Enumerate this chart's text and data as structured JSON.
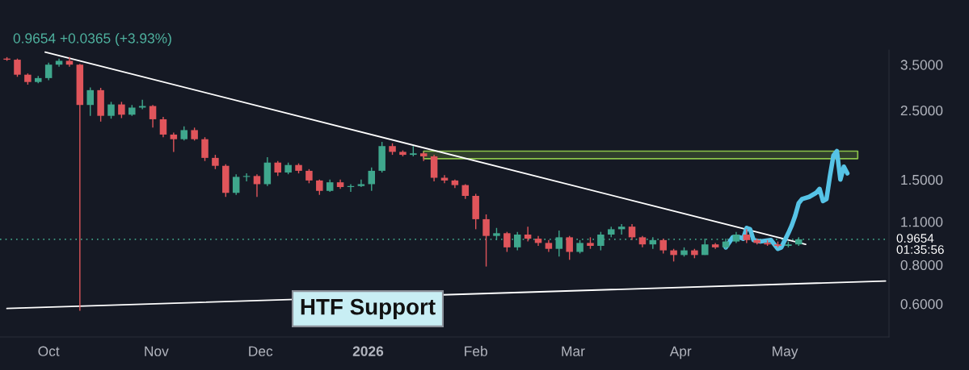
{
  "chart_data": {
    "type": "candlestick",
    "x": [
      "2025-09-19",
      "2025-09-22",
      "2025-09-25",
      "2025-09-28",
      "2025-10-01",
      "2025-10-04",
      "2025-10-07",
      "2025-10-10",
      "2025-10-13",
      "2025-10-16",
      "2025-10-19",
      "2025-10-22",
      "2025-10-25",
      "2025-10-28",
      "2025-10-31",
      "2025-11-03",
      "2025-11-06",
      "2025-11-09",
      "2025-11-12",
      "2025-11-15",
      "2025-11-18",
      "2025-11-21",
      "2025-11-24",
      "2025-11-27",
      "2025-11-30",
      "2025-12-03",
      "2025-12-06",
      "2025-12-09",
      "2025-12-12",
      "2025-12-15",
      "2025-12-18",
      "2025-12-21",
      "2025-12-24",
      "2025-12-27",
      "2025-12-30",
      "2026-01-02",
      "2026-01-05",
      "2026-01-08",
      "2026-01-11",
      "2026-01-14",
      "2026-01-17",
      "2026-01-20",
      "2026-01-23",
      "2026-01-26",
      "2026-01-29",
      "2026-02-01",
      "2026-02-04",
      "2026-02-07",
      "2026-02-10",
      "2026-02-13",
      "2026-02-16",
      "2026-02-19",
      "2026-02-22",
      "2026-02-25",
      "2026-02-28",
      "2026-03-03",
      "2026-03-06",
      "2026-03-09",
      "2026-03-12",
      "2026-03-15",
      "2026-03-18",
      "2026-03-21",
      "2026-03-24",
      "2026-03-27",
      "2026-03-30",
      "2026-04-02",
      "2026-04-05",
      "2026-04-08",
      "2026-04-11",
      "2026-04-14",
      "2026-04-17",
      "2026-04-20",
      "2026-04-23",
      "2026-04-26",
      "2026-04-29",
      "2026-05-02",
      "2026-05-05"
    ],
    "ohlc": [
      [
        3.66,
        3.7,
        3.6,
        3.63
      ],
      [
        3.63,
        3.66,
        3.2,
        3.25
      ],
      [
        3.25,
        3.28,
        3.02,
        3.08
      ],
      [
        3.08,
        3.22,
        3.05,
        3.17
      ],
      [
        3.17,
        3.55,
        3.12,
        3.5
      ],
      [
        3.5,
        3.66,
        3.45,
        3.6
      ],
      [
        3.6,
        3.7,
        3.45,
        3.5
      ],
      [
        3.5,
        3.52,
        0.57,
        2.6
      ],
      [
        2.6,
        2.96,
        2.4,
        2.9
      ],
      [
        2.9,
        2.95,
        2.3,
        2.4
      ],
      [
        2.4,
        2.66,
        2.35,
        2.61
      ],
      [
        2.61,
        2.66,
        2.36,
        2.42
      ],
      [
        2.42,
        2.6,
        2.4,
        2.55
      ],
      [
        2.55,
        2.7,
        2.52,
        2.58
      ],
      [
        2.58,
        2.6,
        2.2,
        2.34
      ],
      [
        2.34,
        2.38,
        2.05,
        2.09
      ],
      [
        2.09,
        2.12,
        1.84,
        2.02
      ],
      [
        2.02,
        2.22,
        2.0,
        2.16
      ],
      [
        2.16,
        2.2,
        2.0,
        2.02
      ],
      [
        2.02,
        2.05,
        1.72,
        1.76
      ],
      [
        1.76,
        1.8,
        1.62,
        1.66
      ],
      [
        1.66,
        1.68,
        1.32,
        1.36
      ],
      [
        1.36,
        1.56,
        1.34,
        1.53
      ],
      [
        1.53,
        1.57,
        1.48,
        1.54
      ],
      [
        1.54,
        1.56,
        1.32,
        1.45
      ],
      [
        1.45,
        1.77,
        1.43,
        1.7
      ],
      [
        1.7,
        1.72,
        1.54,
        1.58
      ],
      [
        1.58,
        1.7,
        1.56,
        1.67
      ],
      [
        1.67,
        1.69,
        1.57,
        1.6
      ],
      [
        1.6,
        1.62,
        1.46,
        1.49
      ],
      [
        1.49,
        1.5,
        1.34,
        1.38
      ],
      [
        1.38,
        1.5,
        1.37,
        1.47
      ],
      [
        1.47,
        1.5,
        1.4,
        1.42
      ],
      [
        1.42,
        1.45,
        1.37,
        1.43
      ],
      [
        1.43,
        1.5,
        1.42,
        1.45
      ],
      [
        1.45,
        1.64,
        1.38,
        1.6
      ],
      [
        1.6,
        1.98,
        1.58,
        1.92
      ],
      [
        1.92,
        1.96,
        1.8,
        1.84
      ],
      [
        1.84,
        1.86,
        1.78,
        1.8
      ],
      [
        1.8,
        1.92,
        1.78,
        1.82
      ],
      [
        1.82,
        1.84,
        1.72,
        1.78
      ],
      [
        1.78,
        1.8,
        1.48,
        1.52
      ],
      [
        1.52,
        1.55,
        1.46,
        1.49
      ],
      [
        1.49,
        1.5,
        1.41,
        1.44
      ],
      [
        1.44,
        1.45,
        1.3,
        1.33
      ],
      [
        1.33,
        1.35,
        1.04,
        1.12
      ],
      [
        1.12,
        1.16,
        0.79,
        0.99
      ],
      [
        0.99,
        1.05,
        0.96,
        1.01
      ],
      [
        1.01,
        1.02,
        0.88,
        0.91
      ],
      [
        0.91,
        1.02,
        0.89,
        1.0
      ],
      [
        1.0,
        1.06,
        0.95,
        0.97
      ],
      [
        0.97,
        0.99,
        0.92,
        0.94
      ],
      [
        0.94,
        0.96,
        0.88,
        0.9
      ],
      [
        0.9,
        1.03,
        0.85,
        0.98
      ],
      [
        0.98,
        0.99,
        0.83,
        0.88
      ],
      [
        0.88,
        0.96,
        0.87,
        0.94
      ],
      [
        0.94,
        0.98,
        0.9,
        0.92
      ],
      [
        0.92,
        1.02,
        0.89,
        1.0
      ],
      [
        1.0,
        1.06,
        0.98,
        1.04
      ],
      [
        1.04,
        1.08,
        1.0,
        1.06
      ],
      [
        1.06,
        1.08,
        0.96,
        0.98
      ],
      [
        0.98,
        0.99,
        0.91,
        0.93
      ],
      [
        0.93,
        0.98,
        0.9,
        0.96
      ],
      [
        0.96,
        0.97,
        0.87,
        0.89
      ],
      [
        0.89,
        0.9,
        0.82,
        0.86
      ],
      [
        0.86,
        0.91,
        0.85,
        0.89
      ],
      [
        0.89,
        0.9,
        0.84,
        0.86
      ],
      [
        0.86,
        0.97,
        0.86,
        0.93
      ],
      [
        0.93,
        0.94,
        0.9,
        0.91
      ],
      [
        0.91,
        0.97,
        0.9,
        0.95
      ],
      [
        0.95,
        1.02,
        0.94,
        1.0
      ],
      [
        1.0,
        1.04,
        0.94,
        0.96
      ],
      [
        0.96,
        0.97,
        0.93,
        0.94
      ],
      [
        0.94,
        0.96,
        0.92,
        0.93
      ],
      [
        0.93,
        0.95,
        0.91,
        0.92
      ],
      [
        0.92,
        0.95,
        0.91,
        0.93
      ],
      [
        0.93,
        0.98,
        0.92,
        0.9654
      ]
    ],
    "colors": [
      "#e0555b",
      "#e0555b",
      "#e0555b",
      "#3fa78d",
      "#3fa78d",
      "#3fa78d",
      "#e0555b",
      "#e0555b",
      "#3fa78d",
      "#e0555b",
      "#3fa78d",
      "#e0555b",
      "#3fa78d",
      "#3fa78d",
      "#e0555b",
      "#e0555b",
      "#e0555b",
      "#3fa78d",
      "#e0555b",
      "#e0555b",
      "#e0555b",
      "#e0555b",
      "#3fa78d",
      "#3fa78d",
      "#e0555b",
      "#3fa78d",
      "#e0555b",
      "#3fa78d",
      "#e0555b",
      "#e0555b",
      "#e0555b",
      "#3fa78d",
      "#e0555b",
      "#3fa78d",
      "#3fa78d",
      "#3fa78d",
      "#3fa78d",
      "#e0555b",
      "#e0555b",
      "#3fa78d",
      "#e0555b",
      "#e0555b",
      "#e0555b",
      "#e0555b",
      "#e0555b",
      "#e0555b",
      "#e0555b",
      "#3fa78d",
      "#e0555b",
      "#3fa78d",
      "#e0555b",
      "#e0555b",
      "#e0555b",
      "#3fa78d",
      "#e0555b",
      "#3fa78d",
      "#e0555b",
      "#3fa78d",
      "#3fa78d",
      "#3fa78d",
      "#e0555b",
      "#e0555b",
      "#3fa78d",
      "#e0555b",
      "#e0555b",
      "#3fa78d",
      "#e0555b",
      "#3fa78d",
      "#e0555b",
      "#3fa78d",
      "#3fa78d",
      "#e0555b",
      "#e0555b",
      "#e0555b",
      "#e0555b",
      "#3fa78d",
      "#3fa78d"
    ],
    "series": [
      {
        "type": "area",
        "x": [
          "2026-01-17",
          "2026-05-22"
        ],
        "values": [
          null,
          null
        ],
        "lower": [
          1.75,
          1.75
        ],
        "upper": [
          1.85,
          1.85
        ],
        "color": "#8bc34a"
      },
      {
        "type": "line",
        "x": [
          "2025-09-30",
          "2026-05-07"
        ],
        "values": [
          3.84,
          0.93
        ],
        "color": "#ffffff"
      },
      {
        "type": "line",
        "x": [
          "2025-09-19",
          "2026-05-30"
        ],
        "values": [
          0.58,
          0.71
        ],
        "color": "#ffffff"
      },
      {
        "type": "line",
        "x": [
          "2026-04-14",
          "2026-04-16",
          "2026-04-18",
          "2026-04-19",
          "2026-04-20",
          "2026-04-21",
          "2026-04-22",
          "2026-04-24",
          "2026-04-27",
          "2026-04-29",
          "2026-04-30",
          "2026-05-02",
          "2026-05-03",
          "2026-05-04",
          "2026-05-05",
          "2026-05-06",
          "2026-05-08",
          "2026-05-09",
          "2026-05-10",
          "2026-05-11",
          "2026-05-12",
          "2026-05-13",
          "2026-05-14",
          "2026-05-15",
          "2026-05-16",
          "2026-05-17",
          "2026-05-18",
          "2026-05-19"
        ],
        "values": [
          0.91,
          0.98,
          0.98,
          0.97,
          1.05,
          1.04,
          0.96,
          0.95,
          0.96,
          0.9,
          0.91,
          1.01,
          1.07,
          1.15,
          1.26,
          1.3,
          1.32,
          1.34,
          1.36,
          1.4,
          1.28,
          1.3,
          1.54,
          1.79,
          1.85,
          1.5,
          1.65,
          1.57
        ],
        "color": "#56c3e6"
      }
    ],
    "log": "y",
    "xlim": [
      "2025-09-17",
      "2026-05-31"
    ],
    "xticks": [
      {
        "value": "2025-10-01",
        "label": "Oct"
      },
      {
        "value": "2025-11-01",
        "label": "Nov"
      },
      {
        "value": "2025-12-01",
        "label": "Dec"
      },
      {
        "value": "2026-01-01",
        "label": "2026"
      },
      {
        "value": "2026-02-01",
        "label": "Feb"
      },
      {
        "value": "2026-03-01",
        "label": "Mar"
      },
      {
        "value": "2026-04-01",
        "label": "Apr"
      },
      {
        "value": "2026-05-01",
        "label": "May"
      }
    ],
    "ylim": [
      0.47,
      3.9
    ],
    "yticks": [
      {
        "value": 0.6,
        "label": "0.6000"
      },
      {
        "value": 0.8,
        "label": "0.8000"
      },
      {
        "value": 1.1,
        "label": "1.1000"
      },
      {
        "value": 1.5,
        "label": "1.5000"
      },
      {
        "value": 2.5,
        "label": "2.5000"
      },
      {
        "value": 3.5,
        "label": "3.5000"
      }
    ],
    "ref_lines": [
      {
        "axis": "y",
        "value": 0.9654,
        "label": "0.9654",
        "color": "#3f9d84",
        "line_style": "dotted"
      }
    ],
    "annotations": [
      "0.9654 +0.0365 (+3.93%)",
      "01:35:56",
      "HTF Support"
    ]
  }
}
